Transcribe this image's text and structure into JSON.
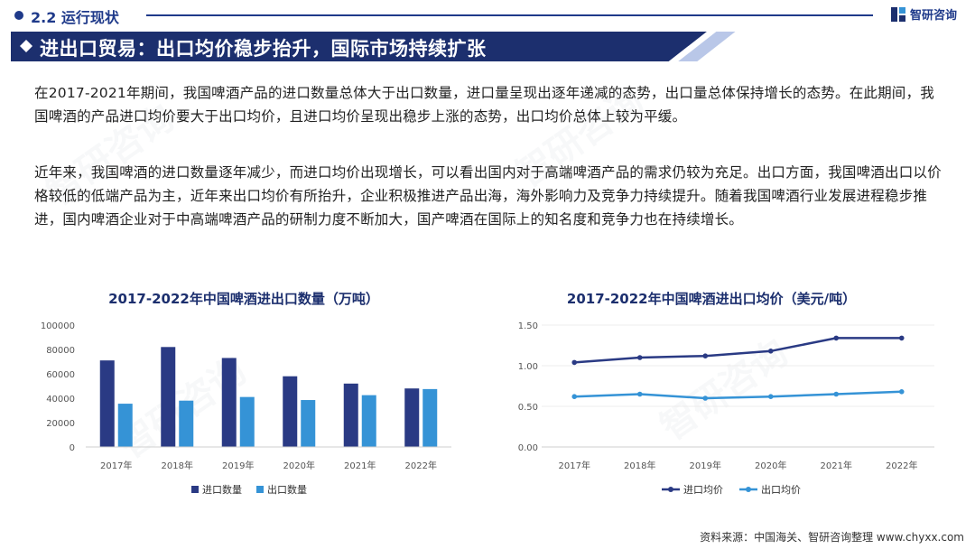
{
  "header": {
    "section_title": "2.2 运行现状",
    "logo_text": "智研咨询",
    "brand_color": "#1c2f6e"
  },
  "banner": {
    "title": "进出口贸易：出口均价稳步抬升，国际市场持续扩张"
  },
  "paragraphs": [
    "在2017-2021年期间，我国啤酒产品的进口数量总体大于出口数量，进口量呈现出逐年递减的态势，出口量总体保持增长的态势。在此期间，我国啤酒的产品进口均价要大于出口均价，且进口均价呈现出稳步上涨的态势，出口均价总体上较为平缓。",
    "近年来，我国啤酒的进口数量逐年减少，而进口均价出现增长，可以看出国内对于高端啤酒产品的需求仍较为充足。出口方面，我国啤酒出口以价格较低的低端产品为主，近年来出口均价有所抬升，企业积极推进产品出海，海外影响力及竞争力持续提升。随着我国啤酒行业发展进程稳步推进，国内啤酒企业对于中高端啤酒产品的研制力度不断加大，国产啤酒在国际上的知名度和竞争力也在持续增长。"
  ],
  "chart_data": [
    {
      "type": "bar",
      "title": "2017-2022年中国啤酒进出口数量（万吨）",
      "categories": [
        "2017年",
        "2018年",
        "2019年",
        "2020年",
        "2021年",
        "2022年"
      ],
      "y_ticks": [
        "0",
        "20000",
        "40000",
        "60000",
        "80000",
        "100000"
      ],
      "ylim": [
        0,
        100000
      ],
      "grid": false,
      "legend_position": "bottom",
      "series": [
        {
          "name": "进口数量",
          "color": "#2a3a84",
          "values": [
            71000,
            82000,
            73000,
            58000,
            52000,
            48000
          ]
        },
        {
          "name": "出口数量",
          "color": "#3593d6",
          "values": [
            35500,
            38000,
            41000,
            38500,
            42500,
            47500
          ]
        }
      ]
    },
    {
      "type": "line",
      "title": "2017-2022年中国啤酒进出口均价（美元/吨）",
      "categories": [
        "2017年",
        "2018年",
        "2019年",
        "2020年",
        "2021年",
        "2022年"
      ],
      "y_ticks": [
        "0.00",
        "0.50",
        "1.00",
        "1.50"
      ],
      "ylim": [
        0,
        1.5
      ],
      "grid": true,
      "legend_position": "bottom",
      "series": [
        {
          "name": "进口均价",
          "color": "#2a3a84",
          "values": [
            1.04,
            1.1,
            1.12,
            1.18,
            1.34,
            1.34
          ]
        },
        {
          "name": "出口均价",
          "color": "#3593d6",
          "values": [
            0.62,
            0.65,
            0.6,
            0.62,
            0.65,
            0.68
          ]
        }
      ]
    }
  ],
  "source": "资料来源：中国海关、智研咨询整理  www.chyxx.com"
}
